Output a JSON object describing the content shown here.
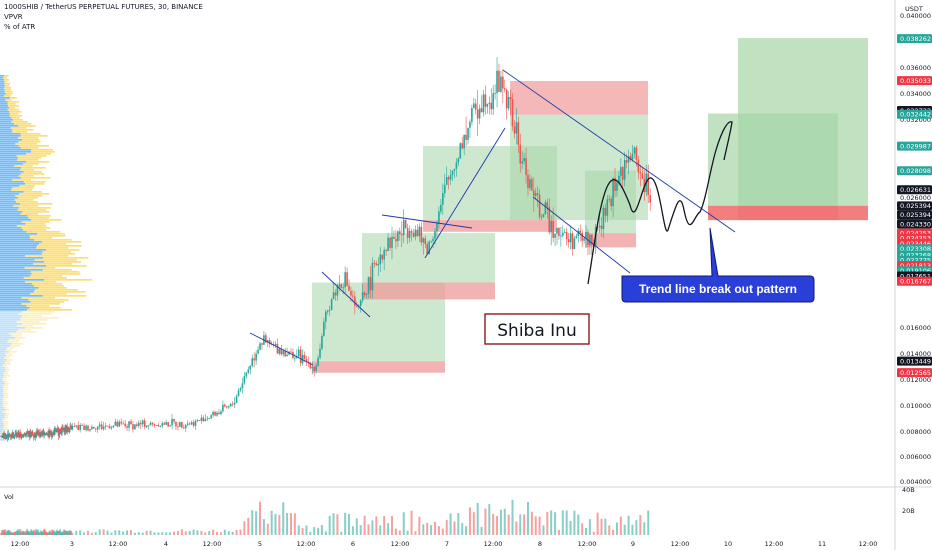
{
  "header": {
    "symbol_line": "1000SHIB / TetherUS PERPETUAL FUTURES, 30, BINANCE",
    "indicator_1": "VPVR",
    "indicator_2": "% of ATR"
  },
  "price_scale": {
    "currency": "USDT",
    "ticks": [
      "0.040000",
      "0.036000",
      "0.034000",
      "0.032000",
      "0.030000",
      "0.028000",
      "0.026000",
      "0.016000",
      "0.014000",
      "0.012000",
      "0.010000",
      "0.008000",
      "0.006000",
      "0.004000"
    ],
    "badges": [
      {
        "label": "0.038262",
        "color": "#26a69a",
        "price": 0.038262
      },
      {
        "label": "0.035033",
        "color": "#f23645",
        "price": 0.035033
      },
      {
        "label": "0.032733",
        "color": "#131722",
        "price": 0.032733
      },
      {
        "label": "0.032442",
        "color": "#26a69a",
        "price": 0.032442
      },
      {
        "label": "0.029987",
        "color": "#26a69a",
        "price": 0.029987
      },
      {
        "label": "0.028098",
        "color": "#26a69a",
        "price": 0.028098
      },
      {
        "label": "0.026631",
        "color": "#131722",
        "price": 0.026631
      },
      {
        "label": "0.025394",
        "color": "#131722",
        "price": 0.025394
      },
      {
        "label": "0.025394",
        "color": "#131722",
        "price": 0.0247
      },
      {
        "label": "0.024330",
        "color": "#131722",
        "price": 0.024
      },
      {
        "label": "0.024253",
        "color": "#f23645",
        "price": 0.0233
      },
      {
        "label": "0.024253",
        "color": "#f23645",
        "price": 0.0229
      },
      {
        "label": "0.023446",
        "color": "#f23645",
        "price": 0.0225
      },
      {
        "label": "0.023308",
        "color": "#26a69a",
        "price": 0.0221
      },
      {
        "label": "0.023268",
        "color": "#26a69a",
        "price": 0.0216
      },
      {
        "label": "0.022775",
        "color": "#26a69a",
        "price": 0.0212
      },
      {
        "label": "0.021813",
        "color": "#f23645",
        "price": 0.0208
      },
      {
        "label": "0.019106",
        "color": "#26a69a",
        "price": 0.0204
      },
      {
        "label": "0.017651",
        "color": "#131722",
        "price": 0.02
      },
      {
        "label": "0.016767",
        "color": "#f23645",
        "price": 0.0196
      },
      {
        "label": "0.013449",
        "color": "#131722",
        "price": 0.013449
      },
      {
        "label": "0.012565",
        "color": "#f23645",
        "price": 0.012565
      }
    ]
  },
  "time_axis": {
    "labels": [
      "12:00",
      "3",
      "12:00",
      "4",
      "12:00",
      "5",
      "12:00",
      "6",
      "12:00",
      "7",
      "12:00",
      "8",
      "12:00",
      "9",
      "12:00",
      "10",
      "12:00",
      "11",
      "12:00"
    ]
  },
  "volume": {
    "label": "Vol",
    "ticks": [
      "40B",
      "20B"
    ]
  },
  "annotations": {
    "title_box": "Shiba Inu",
    "callout": "Trend line break out pattern"
  },
  "colors": {
    "up": "#26a69a",
    "down": "#ef5350",
    "profit_zone": "#a5d6a7",
    "loss_zone": "#ef9a9a",
    "trendline": "#2962ff",
    "vp_blue": "#42a5f5",
    "vp_yellow": "#ffd54f",
    "callout": "#2a3fd8"
  },
  "chart_data": {
    "type": "candlestick",
    "symbol": "1000SHIB / TetherUS PERPETUAL FUTURES",
    "interval": "30",
    "exchange": "BINANCE",
    "y_axis": {
      "unit": "USDT",
      "range": [
        0.004,
        0.041
      ]
    },
    "x_axis": {
      "ticks": [
        "12:00",
        "3",
        "12:00",
        "4",
        "12:00",
        "5",
        "12:00",
        "6",
        "12:00",
        "7",
        "12:00",
        "8",
        "12:00",
        "9",
        "12:00",
        "10",
        "12:00",
        "11",
        "12:00"
      ]
    },
    "price_path": [
      {
        "x": 0,
        "y": 0.0077
      },
      {
        "x": 2,
        "y": 0.0079
      },
      {
        "x": 3,
        "y": 0.0083
      },
      {
        "x": 3.5,
        "y": 0.0085
      },
      {
        "x": 4.3,
        "y": 0.0087
      },
      {
        "x": 4.7,
        "y": 0.01
      },
      {
        "x": 5.0,
        "y": 0.015
      },
      {
        "x": 5.4,
        "y": 0.0138
      },
      {
        "x": 5.6,
        "y": 0.013
      },
      {
        "x": 5.75,
        "y": 0.018
      },
      {
        "x": 5.9,
        "y": 0.02
      },
      {
        "x": 6.05,
        "y": 0.0172
      },
      {
        "x": 6.3,
        "y": 0.022
      },
      {
        "x": 6.6,
        "y": 0.024
      },
      {
        "x": 6.8,
        "y": 0.022
      },
      {
        "x": 7.0,
        "y": 0.027
      },
      {
        "x": 7.3,
        "y": 0.033
      },
      {
        "x": 7.6,
        "y": 0.035
      },
      {
        "x": 7.8,
        "y": 0.029
      },
      {
        "x": 8.0,
        "y": 0.025
      },
      {
        "x": 8.3,
        "y": 0.0228
      },
      {
        "x": 8.6,
        "y": 0.023
      },
      {
        "x": 8.8,
        "y": 0.027
      },
      {
        "x": 9.0,
        "y": 0.0295
      },
      {
        "x": 9.2,
        "y": 0.0255
      }
    ],
    "price_levels": [
      0.038262,
      0.035033,
      0.032733,
      0.032442,
      0.029987,
      0.028098,
      0.026631,
      0.025394,
      0.02433,
      0.024253,
      0.023446,
      0.023308,
      0.023268,
      0.022775,
      0.021813,
      0.019106,
      0.017651,
      0.016767,
      0.013449,
      0.012565
    ],
    "volume_unit": "B",
    "volume_ticks": [
      40,
      20
    ]
  }
}
